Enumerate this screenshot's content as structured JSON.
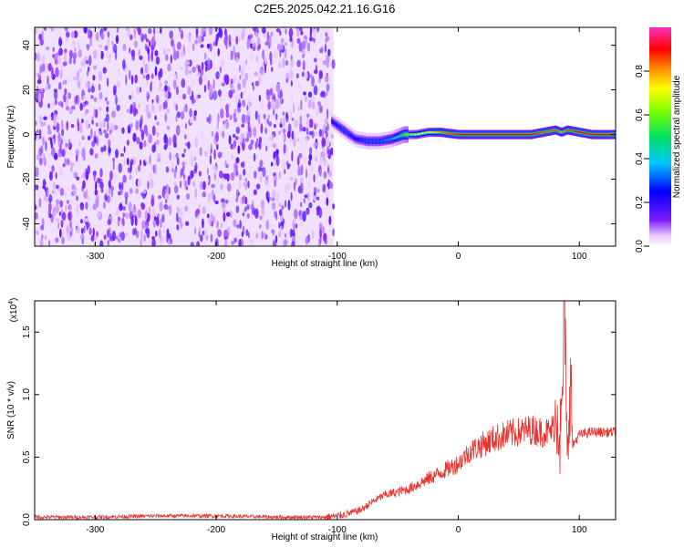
{
  "title": "C2E5.2025.042.21.16.G16",
  "chart_data": [
    {
      "type": "heatmap",
      "xlabel": "Height of straight line (km)",
      "ylabel": "Frequency (Hz)",
      "xlim": [
        -350,
        130
      ],
      "ylim": [
        -50,
        48
      ],
      "x_ticks": [
        -300,
        -200,
        -100,
        0,
        100
      ],
      "x_tick_labels": [
        "-300",
        "-200",
        "-100",
        "0",
        "100"
      ],
      "y_ticks": [
        -40,
        -20,
        0,
        20,
        40
      ],
      "y_tick_labels": [
        "-40",
        "-20",
        "0",
        "20",
        "40"
      ],
      "colorbar": {
        "label": "Normalized spectral amplitude",
        "range": [
          0,
          1
        ],
        "ticks": [
          0.0,
          0.2,
          0.4,
          0.6,
          0.8
        ],
        "tick_labels": [
          "0.0",
          "0.2",
          "0.4",
          "0.6",
          "0.8"
        ],
        "colormap": "rainbow: white-purple-blue-cyan-green-yellow-red-magenta"
      },
      "noise_region_x": [
        -350,
        -103
      ],
      "signal_track": {
        "x": [
          -105,
          -95,
          -85,
          -75,
          -65,
          -55,
          -45,
          -35,
          -25,
          -15,
          0,
          20,
          40,
          60,
          70,
          80,
          85,
          90,
          100,
          110,
          130
        ],
        "frequency_hz": [
          6,
          2,
          -2,
          -3,
          -3,
          -2,
          0,
          0,
          1,
          1,
          0,
          0,
          0,
          0,
          1,
          2,
          1,
          2,
          1,
          0,
          0
        ],
        "peak_amplitude": [
          0.25,
          0.3,
          0.25,
          0.3,
          0.3,
          0.35,
          0.55,
          0.7,
          0.7,
          0.8,
          0.9,
          0.9,
          0.9,
          0.9,
          0.85,
          0.85,
          0.8,
          0.85,
          0.9,
          0.9,
          0.9
        ]
      }
    },
    {
      "type": "line",
      "xlabel": "Height of straight line (km)",
      "ylabel": "SNR (10 * v/v)",
      "y_multiplier_label": "(x10",
      "y_multiplier_exp": "4",
      "y_multiplier_close": ")",
      "xlim": [
        -350,
        130
      ],
      "ylim": [
        0,
        1.75
      ],
      "x_ticks": [
        -300,
        -200,
        -100,
        0,
        100
      ],
      "x_tick_labels": [
        "-300",
        "-200",
        "-100",
        "0",
        "100"
      ],
      "y_ticks": [
        0,
        0.5,
        1.0,
        1.5
      ],
      "y_tick_labels": [
        "0.0",
        "0.5",
        "1.0",
        "1.5"
      ],
      "color": "#e8332f",
      "series": [
        {
          "x": [
            -350,
            -300,
            -250,
            -200,
            -150,
            -110,
            -100,
            -90,
            -80,
            -70,
            -60,
            -50,
            -40,
            -30,
            -20,
            -10,
            0,
            10,
            20,
            30,
            40,
            50,
            60,
            70,
            75,
            80,
            82,
            85,
            88,
            90,
            92,
            95,
            100,
            110,
            120,
            130
          ],
          "y": [
            0.02,
            0.02,
            0.03,
            0.03,
            0.02,
            0.02,
            0.03,
            0.05,
            0.08,
            0.15,
            0.2,
            0.22,
            0.25,
            0.3,
            0.35,
            0.4,
            0.45,
            0.55,
            0.6,
            0.65,
            0.68,
            0.7,
            0.72,
            0.7,
            0.7,
            0.75,
            0.95,
            0.6,
            1.75,
            0.25,
            1.2,
            0.6,
            0.68,
            0.7,
            0.7,
            0.7
          ]
        }
      ]
    }
  ]
}
